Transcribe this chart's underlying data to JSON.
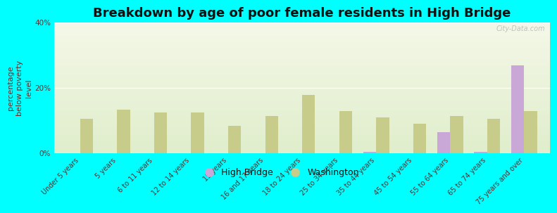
{
  "title": "Breakdown by age of poor female residents in High Bridge",
  "ylabel": "percentage\nbelow poverty\nlevel",
  "categories": [
    "Under 5 years",
    "5 years",
    "6 to 11 years",
    "12 to 14 years",
    "15 years",
    "16 and 17 years",
    "18 to 24 years",
    "25 to 34 years",
    "35 to 44 years",
    "45 to 54 years",
    "55 to 64 years",
    "65 to 74 years",
    "75 years and over"
  ],
  "highbridge_values": [
    0,
    0,
    0,
    0,
    0,
    0,
    0,
    0,
    0.5,
    0,
    6.5,
    0.5,
    27.0
  ],
  "washington_values": [
    10.5,
    13.5,
    12.5,
    12.5,
    8.5,
    11.5,
    18.0,
    13.0,
    11.0,
    9.0,
    11.5,
    10.5,
    13.0
  ],
  "highbridge_color": "#c9a8d8",
  "washington_color": "#c8cc8a",
  "ylim": [
    0,
    40
  ],
  "yticks": [
    0,
    20,
    40
  ],
  "ytick_labels": [
    "0%",
    "20%",
    "40%"
  ],
  "plot_bg_top": "#f5f8e8",
  "plot_bg_bottom": "#e0eecc",
  "outer_background": "#00ffff",
  "title_fontsize": 13,
  "axis_label_fontsize": 8,
  "tick_fontsize": 7.5,
  "legend_labels": [
    "High Bridge",
    "Washington"
  ],
  "bar_width": 0.35,
  "watermark": "City-Data.com"
}
